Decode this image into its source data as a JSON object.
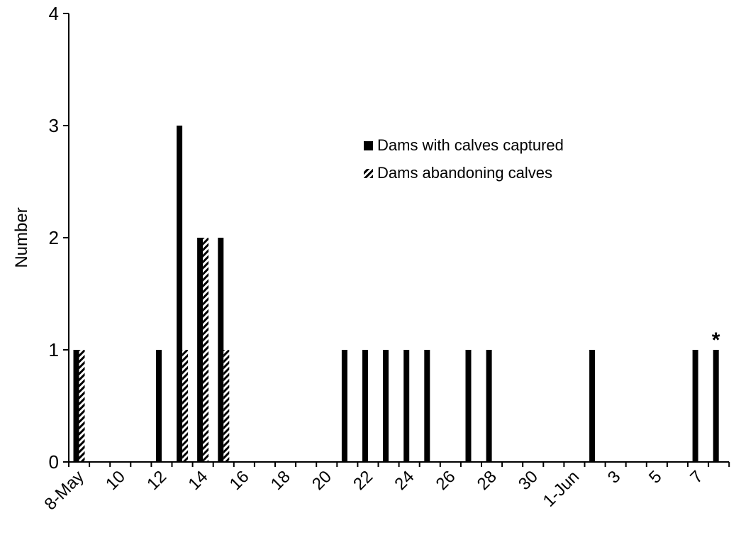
{
  "chart_data": {
    "type": "bar",
    "ylabel": "Number",
    "ylim": [
      0,
      4
    ],
    "yticks": [
      0,
      1,
      2,
      3,
      4
    ],
    "xlim_days": [
      0,
      31
    ],
    "xticks": [
      {
        "day": 0,
        "label": "8-May"
      },
      {
        "day": 2,
        "label": "10"
      },
      {
        "day": 4,
        "label": "12"
      },
      {
        "day": 6,
        "label": "14"
      },
      {
        "day": 8,
        "label": "16"
      },
      {
        "day": 10,
        "label": "18"
      },
      {
        "day": 12,
        "label": "20"
      },
      {
        "day": 14,
        "label": "22"
      },
      {
        "day": 16,
        "label": "24"
      },
      {
        "day": 18,
        "label": "26"
      },
      {
        "day": 20,
        "label": "28"
      },
      {
        "day": 22,
        "label": "30"
      },
      {
        "day": 24,
        "label": "1-Jun"
      },
      {
        "day": 26,
        "label": "3"
      },
      {
        "day": 28,
        "label": "5"
      },
      {
        "day": 30,
        "label": "7"
      }
    ],
    "series": [
      {
        "name": "Dams with calves captured",
        "color": "#000000",
        "pattern": "solid",
        "points": [
          {
            "x": "8-May",
            "y": 1
          },
          {
            "x": "12-May",
            "y": 1
          },
          {
            "x": "13-May",
            "y": 3
          },
          {
            "x": "14-May",
            "y": 2
          },
          {
            "x": "15-May",
            "y": 2
          },
          {
            "x": "21-May",
            "y": 1
          },
          {
            "x": "22-May",
            "y": 1
          },
          {
            "x": "23-May",
            "y": 1
          },
          {
            "x": "24-May",
            "y": 1
          },
          {
            "x": "25-May",
            "y": 1
          },
          {
            "x": "27-May",
            "y": 1
          },
          {
            "x": "28-May",
            "y": 1
          },
          {
            "x": "2-Jun",
            "y": 1
          },
          {
            "x": "7-Jun",
            "y": 1
          },
          {
            "x": "8-Jun",
            "y": 1
          }
        ]
      },
      {
        "name": "Dams abandoning calves",
        "color": "#000000",
        "pattern": "hatched",
        "points": [
          {
            "x": "8-May",
            "y": 1
          },
          {
            "x": "13-May",
            "y": 1
          },
          {
            "x": "14-May",
            "y": 2
          },
          {
            "x": "15-May",
            "y": 1
          }
        ]
      }
    ],
    "annotations": [
      {
        "text": "*",
        "x": "8-Jun",
        "y": 1
      }
    ],
    "legend": {
      "position": "upper-right"
    },
    "grid": false
  }
}
